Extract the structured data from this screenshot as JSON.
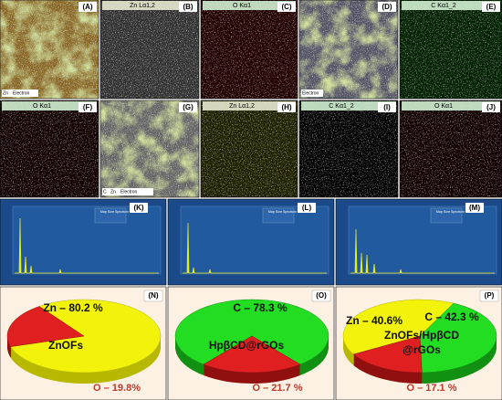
{
  "panels": [
    {
      "label": "(A)",
      "title": null,
      "legend": [
        "Zn",
        "Electron"
      ]
    },
    {
      "label": "(B)",
      "title": "Zn Lα1,2",
      "legend": null
    },
    {
      "label": "(C)",
      "title": "O Kα1",
      "legend": null
    },
    {
      "label": "(D)",
      "title": null,
      "legend": [
        "Electron"
      ]
    },
    {
      "label": "(E)",
      "title": "C Kα1_2",
      "legend": null
    },
    {
      "label": "(F)",
      "title": "O Kα1",
      "legend": null
    },
    {
      "label": "(G)",
      "title": null,
      "legend": [
        "C",
        "Zn",
        "Electron"
      ]
    },
    {
      "label": "(H)",
      "title": "Zn Lα1,2",
      "legend": null
    },
    {
      "label": "(I)",
      "title": "C Kα1_2",
      "legend": null
    },
    {
      "label": "(J)",
      "title": "O Kα1",
      "legend": null
    }
  ],
  "spectra": [
    {
      "label": "(K)",
      "legend": "Map Sum Spectrum"
    },
    {
      "label": "(L)",
      "legend": "Map Sum Spectrum"
    },
    {
      "label": "(M)",
      "legend": "Map Sum Spectrum"
    }
  ],
  "pies": [
    {
      "label": "(N)",
      "caption": [
        "ZnOFs"
      ],
      "slices": [
        {
          "name": "Zn",
          "value": 80.2,
          "value_label": "Zn – 80.2 %",
          "color": "#f2f20a"
        },
        {
          "name": "O",
          "value": 19.8,
          "value_label": "O – 19.8%",
          "color": "#e02020"
        }
      ]
    },
    {
      "label": "(O)",
      "caption": [
        "HpβCD@rGOs"
      ],
      "slices": [
        {
          "name": "C",
          "value": 78.3,
          "value_label": "C – 78.3 %",
          "color": "#22dd22"
        },
        {
          "name": "O",
          "value": 21.7,
          "value_label": "O – 21.7 %",
          "color": "#e02020"
        }
      ]
    },
    {
      "label": "(P)",
      "caption": [
        "ZnOFs/HpβCD",
        "@rGOs"
      ],
      "slices": [
        {
          "name": "Zn",
          "value": 40.6,
          "value_label": "Zn – 40.6%",
          "color": "#f2f20a"
        },
        {
          "name": "C",
          "value": 42.3,
          "value_label": "C – 42.3 %",
          "color": "#22dd22"
        },
        {
          "name": "O",
          "value": 17.1,
          "value_label": "O – 17.1 %",
          "color": "#e02020"
        }
      ]
    }
  ]
}
